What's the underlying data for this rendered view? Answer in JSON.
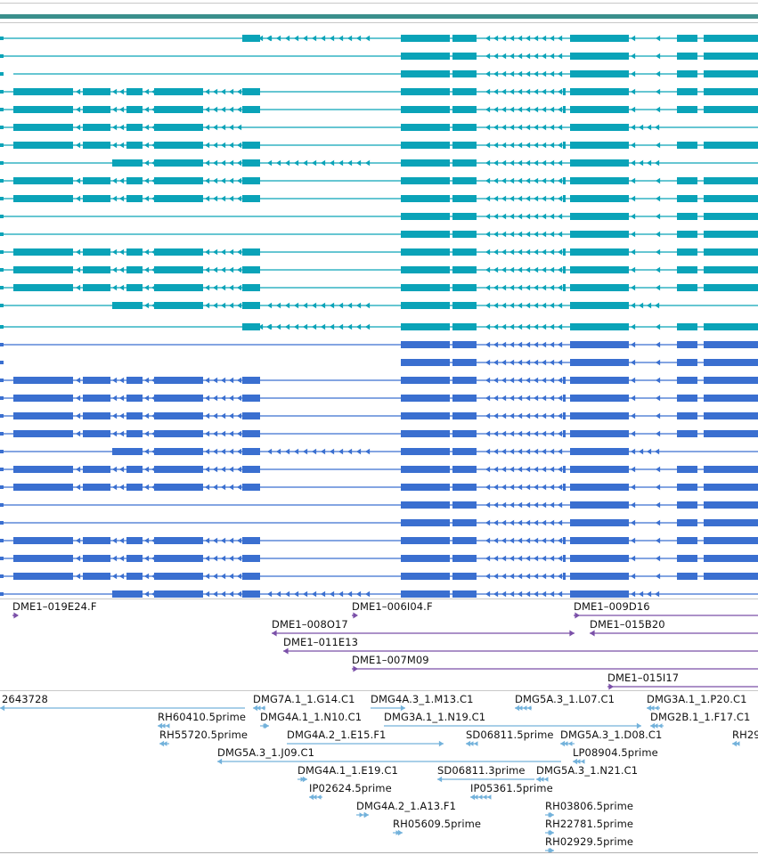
{
  "colors": {
    "axis_bar": "#3a8f8c",
    "transcript_teal": "#0aa3b8",
    "transcript_blue": "#3a6fd0",
    "clone_purple": "#7a4fa8",
    "est_light_blue": "#73b2db",
    "separator": "#c8c8c8"
  },
  "tracks": {
    "transcripts_a": {
      "row_count": 17,
      "color": "teal"
    },
    "transcripts_b": {
      "row_count": 16,
      "color": "blue"
    },
    "clones": {
      "color": "purple",
      "labels": [
        "DME1–019E24.F",
        "DME1–006I04.F",
        "DME1–009D16",
        "DME1–008O17",
        "DME1–015B20",
        "DME1–011E13",
        "DME1–007M09",
        "DME1–015I17"
      ]
    },
    "ests": {
      "color": "light-blue",
      "labels": [
        "2643728",
        "DMG7A.1_1.G14.C1",
        "DMG4A.3_1.M13.C1",
        "DMG5A.3_1.L07.C1",
        "DMG3A.1_1.P20.C1",
        "RH60410.5prime",
        "DMG4A.1_1.N10.C1",
        "DMG3A.1_1.N19.C1",
        "DMG2B.1_1.F17.C1",
        "RH55720.5prime",
        "DMG4A.2_1.E15.F1",
        "SD06811.5prime",
        "DMG5A.3_1.D08.C1",
        "RH29",
        "DMG5A.3_1.J09.C1",
        "LP08904.5prime",
        "DMG4A.1_1.E19.C1",
        "SD06811.3prime",
        "DMG5A.3_1.N21.C1",
        "IP02624.5prime",
        "IP05361.5prime",
        "DMG4A.2_1.A13.F1",
        "RH03806.5prime",
        "RH05609.5prime",
        "RH22781.5prime",
        "RH02929.5prime"
      ]
    }
  }
}
